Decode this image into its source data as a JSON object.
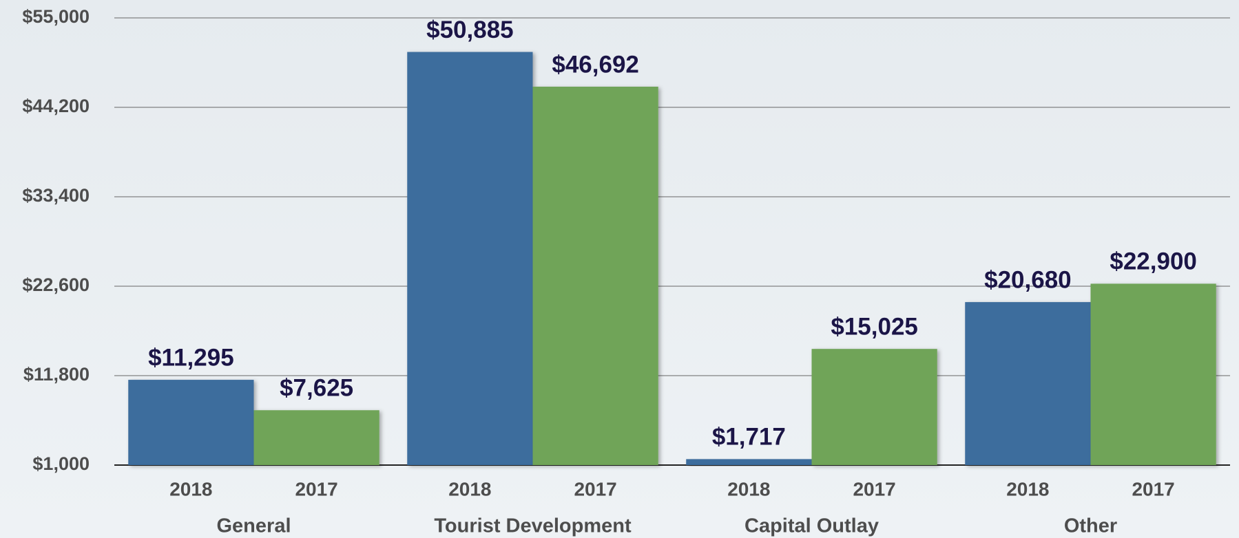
{
  "chart_data": {
    "type": "bar",
    "categories": [
      "General",
      "Tourist Development",
      "Capital Outlay",
      "Other"
    ],
    "series": [
      {
        "name": "2018",
        "color": "#3d6d9d",
        "values": [
          11295,
          50885,
          1717,
          20680
        ],
        "value_labels": [
          "$11,295",
          "$50,885",
          "$1,717",
          "$20,680"
        ]
      },
      {
        "name": "2017",
        "color": "#6fa459",
        "values": [
          7625,
          46692,
          15025,
          22900
        ],
        "value_labels": [
          "$7,625",
          "$46,692",
          "$15,025",
          "$22,900"
        ]
      }
    ],
    "ylim": [
      1000,
      55000
    ],
    "yticks": [
      {
        "value": 1000,
        "label": "$1,000"
      },
      {
        "value": 11800,
        "label": "$11,800"
      },
      {
        "value": 22600,
        "label": "$22,600"
      },
      {
        "value": 33400,
        "label": "$33,400"
      },
      {
        "value": 44200,
        "label": "$44,200"
      },
      {
        "value": 55000,
        "label": "$55,000"
      }
    ],
    "grid": true
  }
}
